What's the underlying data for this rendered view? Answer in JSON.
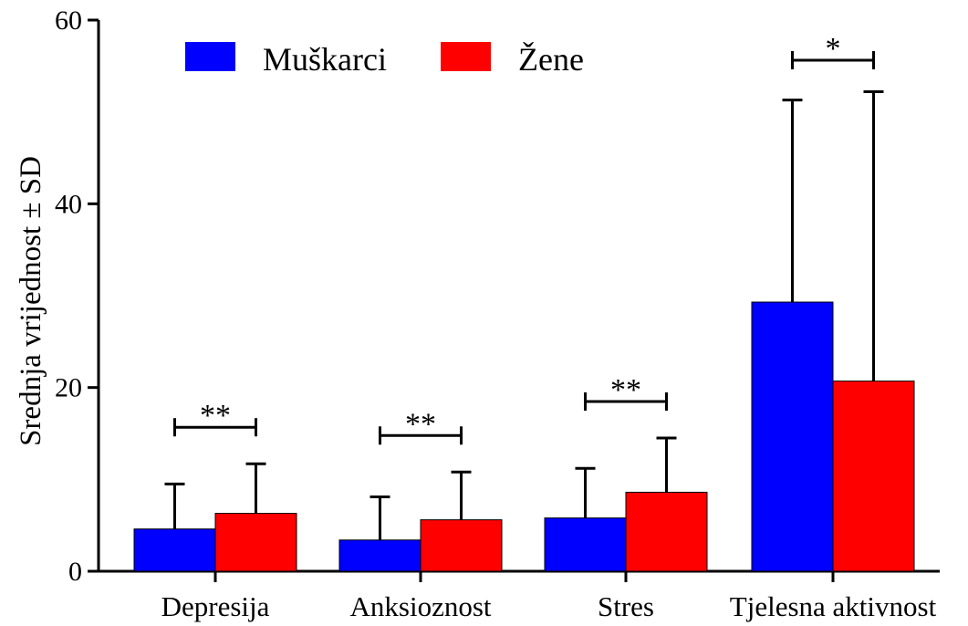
{
  "chart_data": {
    "type": "bar",
    "title": "",
    "xlabel": "",
    "ylabel": "Srednja vrijednost ± SD",
    "ylim": [
      0,
      60
    ],
    "yticks": [
      "0",
      "20",
      "40",
      "60"
    ],
    "grid": false,
    "legend_position": "top-left",
    "categories": [
      "Depresija",
      "Anksioznost",
      "Stres",
      "Tjelesna aktivnost"
    ],
    "series": [
      {
        "name": "Muškarci",
        "color": "#0000ff",
        "values": [
          4.6,
          3.4,
          5.8,
          29.3
        ],
        "sd": [
          4.9,
          4.7,
          5.4,
          22.0
        ]
      },
      {
        "name": "Žene",
        "color": "#ff0000",
        "values": [
          6.3,
          5.6,
          8.6,
          20.7
        ],
        "sd": [
          5.4,
          5.2,
          5.9,
          31.5
        ]
      }
    ],
    "significance": [
      "**",
      "**",
      "**",
      "*"
    ]
  }
}
